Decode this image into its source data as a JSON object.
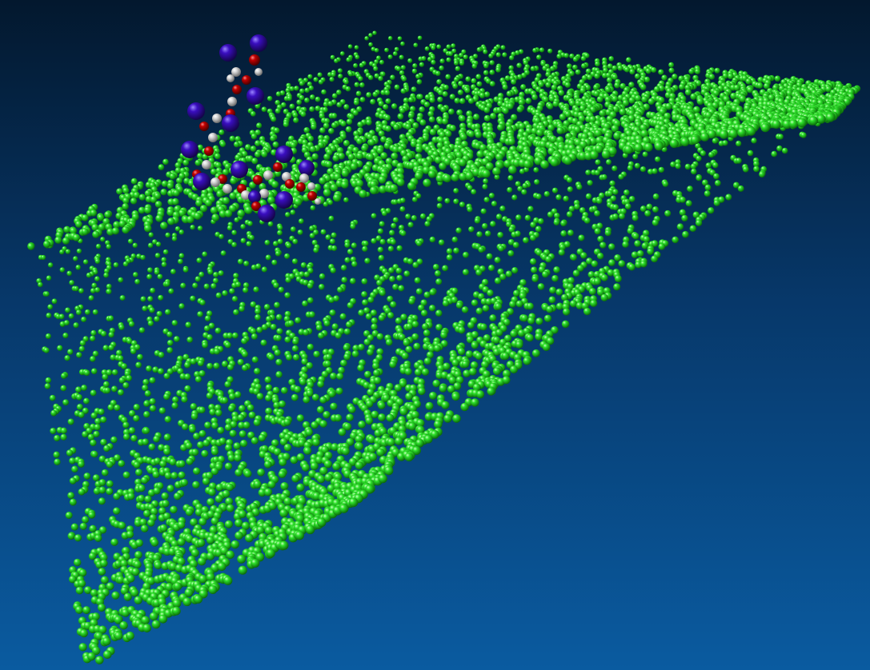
{
  "scene": {
    "kind": "3d-molecular-render",
    "background": {
      "top_color": "#03182e",
      "mid_color": "#07386a",
      "bottom_color": "#0a5ba0"
    },
    "surface": {
      "name": "green-particle-surface",
      "color": "#2ee02a",
      "highlight_color": "#c8ffc0",
      "shadow_color": "#0a6a0a"
    },
    "molecule": {
      "name": "adsorbed-molecule",
      "atom_types": [
        {
          "element": "large-atom",
          "color": "#3a0ec0",
          "highlight": "#9a86ff"
        },
        {
          "element": "oxygen-like",
          "color": "#c00000",
          "highlight": "#ff8a8a"
        },
        {
          "element": "hydrogen-like",
          "color": "#d8d8d8",
          "highlight": "#ffffff"
        }
      ]
    }
  }
}
